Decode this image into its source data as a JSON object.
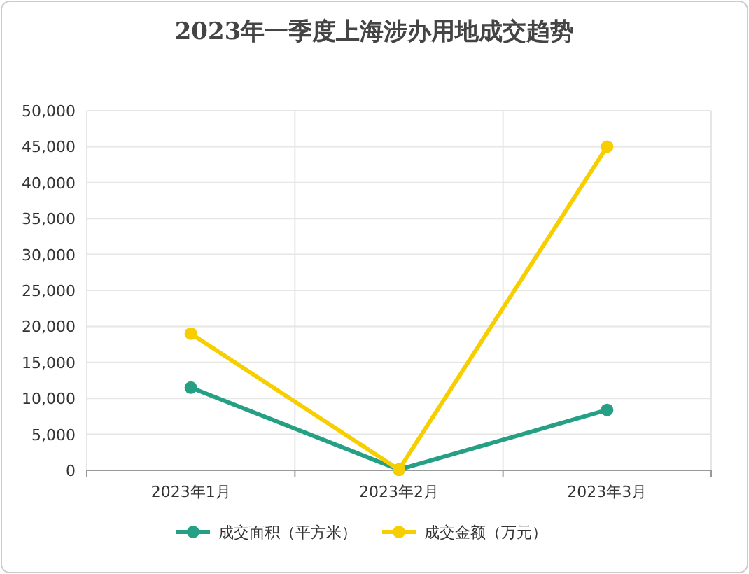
{
  "chart_data": {
    "type": "line",
    "title": "2023年一季度上海涉办用地成交趋势",
    "categories": [
      "2023年1月",
      "2023年2月",
      "2023年3月"
    ],
    "series": [
      {
        "name": "成交面积（平方米）",
        "color": "#26a085",
        "values": [
          11500,
          100,
          8400
        ]
      },
      {
        "name": "成交金额（万元）",
        "color": "#f7cf00",
        "values": [
          19000,
          100,
          45000
        ]
      }
    ],
    "ylim": [
      0,
      50000
    ],
    "yticks": [
      {
        "value": 0,
        "label": "0"
      },
      {
        "value": 5000,
        "label": "5,000"
      },
      {
        "value": 10000,
        "label": "10,000"
      },
      {
        "value": 15000,
        "label": "15,000"
      },
      {
        "value": 20000,
        "label": "20,000"
      },
      {
        "value": 25000,
        "label": "25,000"
      },
      {
        "value": 30000,
        "label": "30,000"
      },
      {
        "value": 35000,
        "label": "35,000"
      },
      {
        "value": 40000,
        "label": "40,000"
      },
      {
        "value": 45000,
        "label": "45,000"
      },
      {
        "value": 50000,
        "label": "50,000"
      }
    ],
    "grid": true,
    "legend": "bottom",
    "marker": "circle",
    "line_style": "solid"
  }
}
